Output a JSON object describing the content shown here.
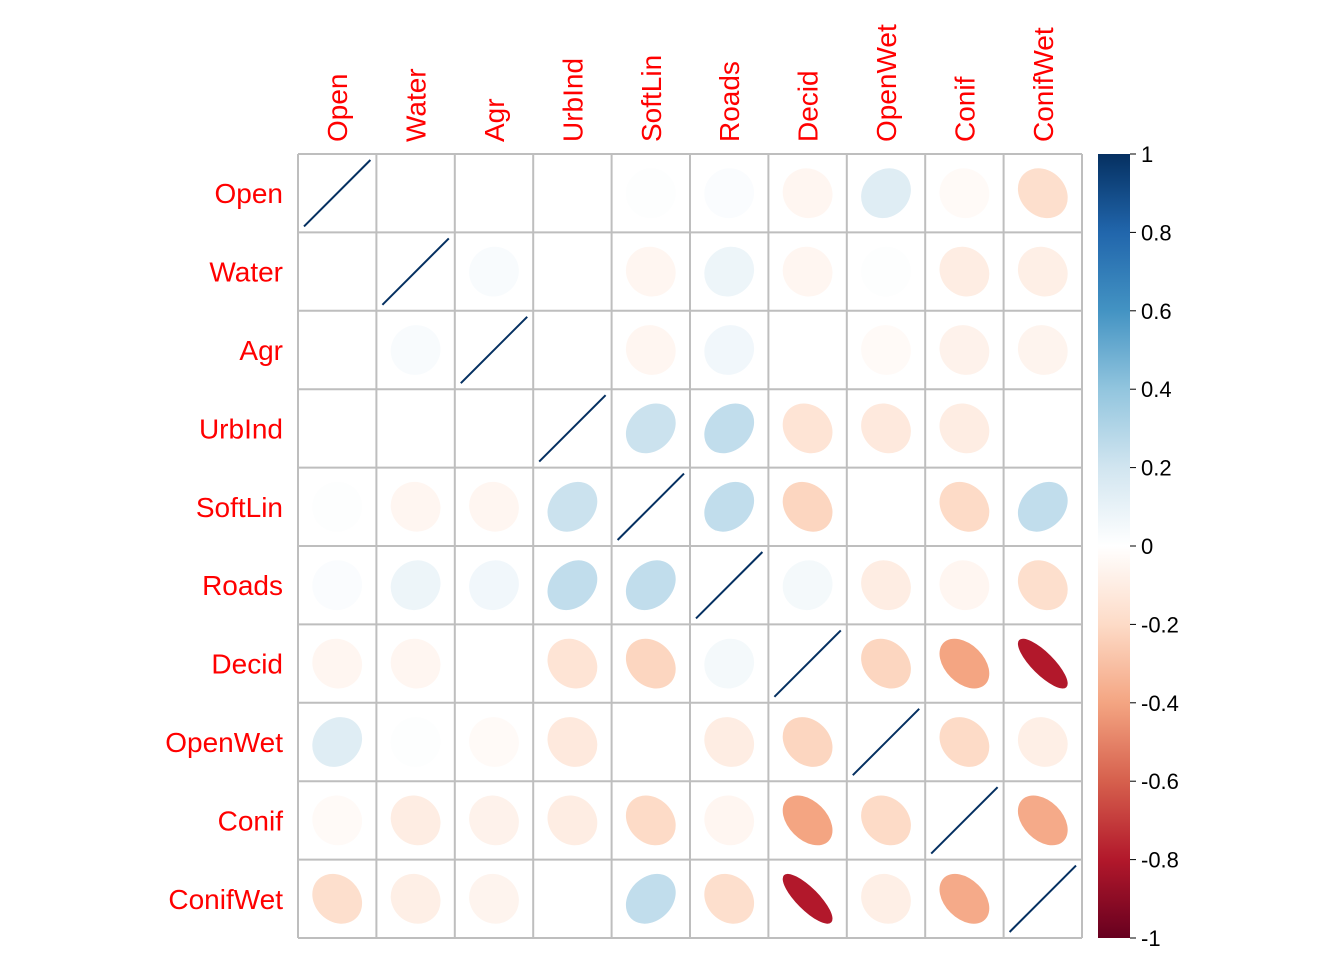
{
  "chart_data": {
    "type": "heatmap",
    "title": "",
    "variables": [
      "Open",
      "Water",
      "Agr",
      "UrbInd",
      "SoftLin",
      "Roads",
      "Decid",
      "OpenWet",
      "Conif",
      "ConifWet"
    ],
    "matrix": [
      [
        1,
        0.0,
        0.0,
        0.0,
        0.01,
        0.02,
        -0.05,
        0.14,
        -0.03,
        -0.18
      ],
      [
        0.0,
        1,
        0.03,
        0.0,
        -0.05,
        0.08,
        -0.05,
        0.01,
        -0.1,
        -0.09
      ],
      [
        0.0,
        0.03,
        1,
        0.0,
        -0.05,
        0.06,
        0.0,
        -0.03,
        -0.07,
        -0.06
      ],
      [
        0.0,
        0.0,
        0.0,
        1,
        0.22,
        0.25,
        -0.15,
        -0.12,
        -0.1,
        0.0
      ],
      [
        0.01,
        -0.05,
        -0.05,
        0.22,
        1,
        0.25,
        -0.22,
        0.0,
        -0.2,
        0.25
      ],
      [
        0.02,
        0.08,
        0.06,
        0.25,
        0.25,
        1,
        0.05,
        -0.1,
        -0.05,
        -0.18
      ],
      [
        -0.05,
        -0.05,
        0.0,
        -0.15,
        -0.22,
        0.05,
        1,
        -0.22,
        -0.4,
        -0.8
      ],
      [
        0.14,
        0.01,
        -0.03,
        -0.12,
        0.0,
        -0.1,
        -0.22,
        1,
        -0.2,
        -0.09
      ],
      [
        -0.03,
        -0.1,
        -0.07,
        -0.1,
        -0.2,
        -0.05,
        -0.4,
        -0.2,
        1,
        -0.38
      ],
      [
        -0.18,
        -0.09,
        -0.06,
        0.0,
        0.25,
        -0.18,
        -0.8,
        -0.09,
        -0.38,
        1
      ]
    ],
    "colorbar": {
      "ticks": [
        "1",
        "0.8",
        "0.6",
        "0.4",
        "0.2",
        "0",
        "-0.2",
        "-0.4",
        "-0.6",
        "-0.8",
        "-1"
      ],
      "range": [
        -1,
        1
      ],
      "colors": [
        "#67001F",
        "#B2182B",
        "#D6604D",
        "#F4A582",
        "#FDDBC7",
        "#FFFFFF",
        "#D1E5F0",
        "#92C5DE",
        "#4393C3",
        "#2166AC",
        "#053061"
      ]
    },
    "label_color": "#FF0000",
    "grid_color": "#BEBEBE",
    "diagonal_line_color": "#053061"
  }
}
